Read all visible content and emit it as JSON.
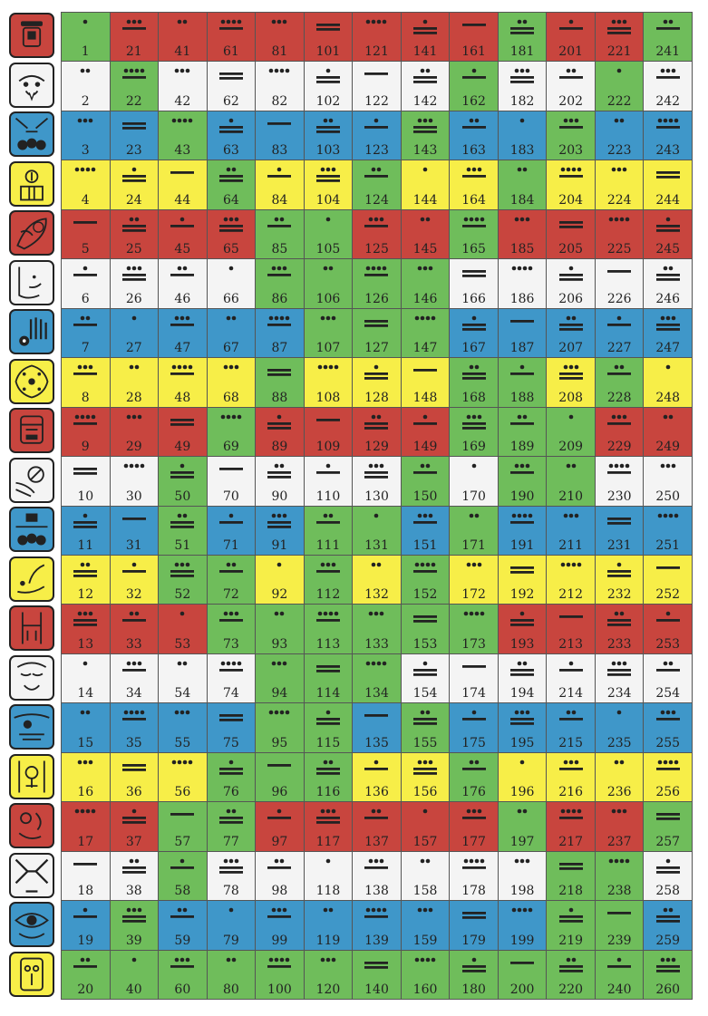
{
  "title": "",
  "colors": {
    "red": "#c8453e",
    "white": "#f4f4f4",
    "blue": "#3f97c9",
    "yellow": "#f7ee48",
    "green": "#6fbd5b",
    "ink": "#222222"
  },
  "row_colors": [
    "red",
    "white",
    "blue",
    "yellow",
    "red",
    "white",
    "blue",
    "yellow",
    "red",
    "white",
    "blue",
    "yellow",
    "red",
    "white",
    "blue",
    "yellow",
    "red",
    "white",
    "blue",
    "yellow"
  ],
  "day_signs": [
    {
      "name": "day-sign-1-icon"
    },
    {
      "name": "day-sign-2-icon"
    },
    {
      "name": "day-sign-3-icon"
    },
    {
      "name": "day-sign-4-icon"
    },
    {
      "name": "day-sign-5-icon"
    },
    {
      "name": "day-sign-6-icon"
    },
    {
      "name": "day-sign-7-icon"
    },
    {
      "name": "day-sign-8-icon"
    },
    {
      "name": "day-sign-9-icon"
    },
    {
      "name": "day-sign-10-icon"
    },
    {
      "name": "day-sign-11-icon"
    },
    {
      "name": "day-sign-12-icon"
    },
    {
      "name": "day-sign-13-icon"
    },
    {
      "name": "day-sign-14-icon"
    },
    {
      "name": "day-sign-15-icon"
    },
    {
      "name": "day-sign-16-icon"
    },
    {
      "name": "day-sign-17-icon"
    },
    {
      "name": "day-sign-18-icon"
    },
    {
      "name": "day-sign-19-icon"
    },
    {
      "name": "day-sign-20-icon"
    }
  ],
  "grid": {
    "columns": 13,
    "rows": 20,
    "highlight_color": "green",
    "highlighted_days": [
      1,
      22,
      43,
      64,
      85,
      106,
      126,
      146,
      165,
      184,
      203,
      222,
      241,
      50,
      69,
      88,
      107,
      127,
      147,
      168,
      189,
      210,
      51,
      72,
      93,
      114,
      133,
      52,
      73,
      94,
      113,
      112,
      58,
      77,
      96,
      115,
      134,
      153,
      173,
      39,
      57,
      76,
      95,
      114,
      133,
      152,
      171,
      190,
      209,
      228,
      20,
      40,
      60,
      80,
      100,
      120,
      140,
      160,
      180,
      200,
      220,
      240,
      260,
      116,
      155,
      176,
      197,
      218,
      239,
      86,
      111,
      131,
      150,
      169,
      188,
      105,
      124,
      143,
      162,
      181,
      200,
      219,
      238,
      257
    ]
  },
  "cells": [
    [
      "1",
      "21",
      "41",
      "61",
      "81",
      "101",
      "121",
      "141",
      "161",
      "181",
      "201",
      "221",
      "241"
    ],
    [
      "2",
      "22",
      "42",
      "62",
      "82",
      "102",
      "122",
      "142",
      "162",
      "182",
      "202",
      "222",
      "242"
    ],
    [
      "3",
      "23",
      "43",
      "63",
      "83",
      "103",
      "123",
      "143",
      "163",
      "183",
      "203",
      "223",
      "243"
    ],
    [
      "4",
      "24",
      "44",
      "64",
      "84",
      "104",
      "124",
      "144",
      "164",
      "184",
      "204",
      "224",
      "244"
    ],
    [
      "5",
      "25",
      "45",
      "65",
      "85",
      "105",
      "125",
      "145",
      "165",
      "185",
      "205",
      "225",
      "245"
    ],
    [
      "6",
      "26",
      "46",
      "66",
      "86",
      "106",
      "126",
      "146",
      "166",
      "186",
      "206",
      "226",
      "246"
    ],
    [
      "7",
      "27",
      "47",
      "67",
      "87",
      "107",
      "127",
      "147",
      "167",
      "187",
      "207",
      "227",
      "247"
    ],
    [
      "8",
      "28",
      "48",
      "68",
      "88",
      "108",
      "128",
      "148",
      "168",
      "188",
      "208",
      "228",
      "248"
    ],
    [
      "9",
      "29",
      "49",
      "69",
      "89",
      "109",
      "129",
      "149",
      "169",
      "189",
      "209",
      "229",
      "249"
    ],
    [
      "10",
      "30",
      "50",
      "70",
      "90",
      "110",
      "130",
      "150",
      "170",
      "190",
      "210",
      "230",
      "250"
    ],
    [
      "11",
      "31",
      "51",
      "71",
      "91",
      "111",
      "131",
      "151",
      "171",
      "191",
      "211",
      "231",
      "251"
    ],
    [
      "12",
      "32",
      "52",
      "72",
      "92",
      "112",
      "132",
      "152",
      "172",
      "192",
      "212",
      "232",
      "252"
    ],
    [
      "13",
      "33",
      "53",
      "73",
      "93",
      "113",
      "133",
      "153",
      "173",
      "193",
      "213",
      "233",
      "253"
    ],
    [
      "14",
      "34",
      "54",
      "74",
      "94",
      "114",
      "134",
      "154",
      "174",
      "194",
      "214",
      "234",
      "254"
    ],
    [
      "15",
      "35",
      "55",
      "75",
      "95",
      "115",
      "135",
      "155",
      "175",
      "195",
      "215",
      "235",
      "255"
    ],
    [
      "16",
      "36",
      "56",
      "76",
      "96",
      "116",
      "136",
      "156",
      "176",
      "196",
      "216",
      "236",
      "256"
    ],
    [
      "17",
      "37",
      "57",
      "77",
      "97",
      "117",
      "137",
      "157",
      "177",
      "197",
      "217",
      "237",
      "257"
    ],
    [
      "18",
      "38",
      "58",
      "78",
      "98",
      "118",
      "138",
      "158",
      "178",
      "198",
      "218",
      "238",
      "258"
    ],
    [
      "19",
      "39",
      "59",
      "79",
      "99",
      "119",
      "139",
      "159",
      "179",
      "199",
      "219",
      "239",
      "259"
    ],
    [
      "20",
      "40",
      "60",
      "80",
      "100",
      "120",
      "140",
      "160",
      "180",
      "200",
      "220",
      "240",
      "260"
    ]
  ]
}
